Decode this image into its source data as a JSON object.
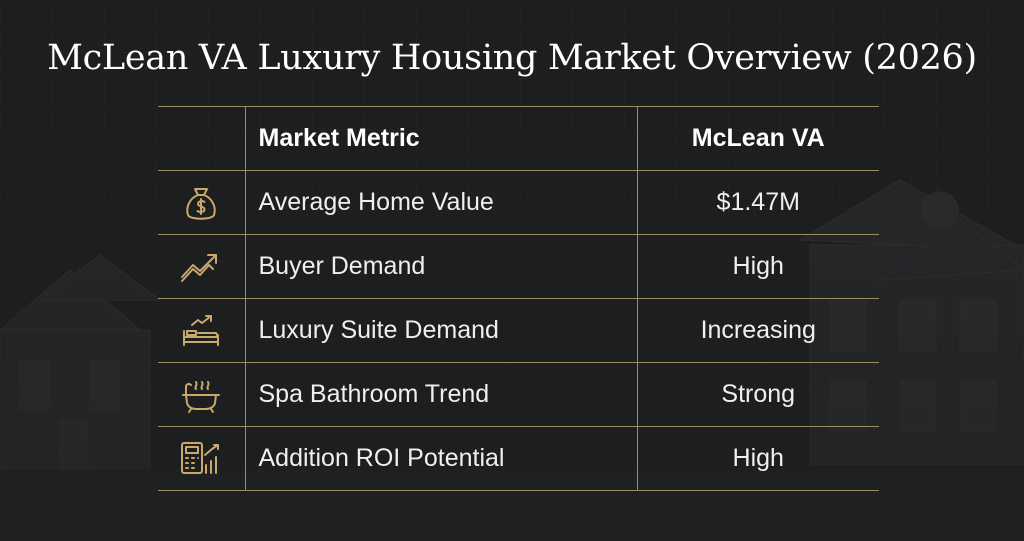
{
  "title": "McLean VA Luxury Housing Market Overview (2026)",
  "colors": {
    "background": "#1d1f21",
    "accent_gold": "#c9a86a",
    "rule_line": "#a18a5c",
    "text": "#f2f2f2"
  },
  "table": {
    "headers": {
      "metric": "Market Metric",
      "value": "McLean VA"
    },
    "rows": [
      {
        "icon": "money-bag-icon",
        "metric": "Average Home Value",
        "value": "$1.47M"
      },
      {
        "icon": "trend-up-icon",
        "metric": "Buyer Demand",
        "value": "High"
      },
      {
        "icon": "bed-trend-icon",
        "metric": "Luxury Suite Demand",
        "value": "Increasing"
      },
      {
        "icon": "bathtub-icon",
        "metric": "Spa Bathroom Trend",
        "value": "Strong"
      },
      {
        "icon": "calculator-chart-icon",
        "metric": "Addition ROI Potential",
        "value": "High"
      }
    ]
  }
}
